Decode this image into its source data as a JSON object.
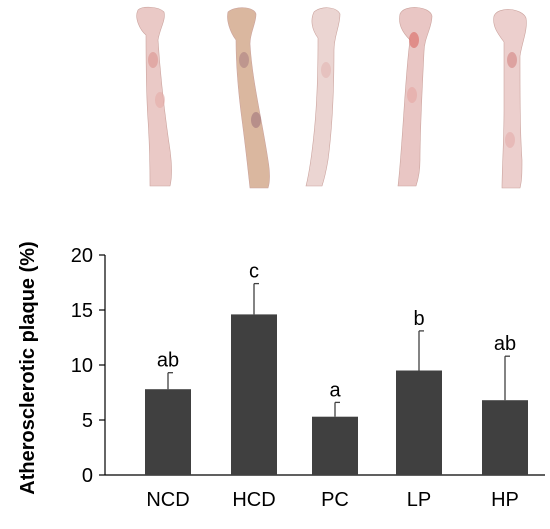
{
  "chart_data": {
    "type": "bar",
    "title": "",
    "xlabel": "",
    "ylabel": "Atherosclerotic plaque  (%)",
    "ylim": [
      0,
      20
    ],
    "yticks": [
      "0",
      "5",
      "10",
      "15",
      "20"
    ],
    "categories": [
      "NCD",
      "HCD",
      "PC",
      "LP",
      "HP"
    ],
    "values": [
      7.8,
      14.6,
      5.3,
      9.5,
      6.8
    ],
    "error": [
      1.5,
      2.8,
      1.3,
      3.6,
      4.0
    ],
    "significance": [
      "ab",
      "c",
      "a",
      "b",
      "ab"
    ],
    "grid": false,
    "legend": "none",
    "bar_color": "#404040"
  },
  "specimens": [
    {
      "group": "NCD",
      "tint": "#e9c7c4"
    },
    {
      "group": "HCD",
      "tint": "#d9b49a"
    },
    {
      "group": "PC",
      "tint": "#ead3d0"
    },
    {
      "group": "LP",
      "tint": "#e8c3c1"
    },
    {
      "group": "HP",
      "tint": "#ebcdcb"
    }
  ]
}
